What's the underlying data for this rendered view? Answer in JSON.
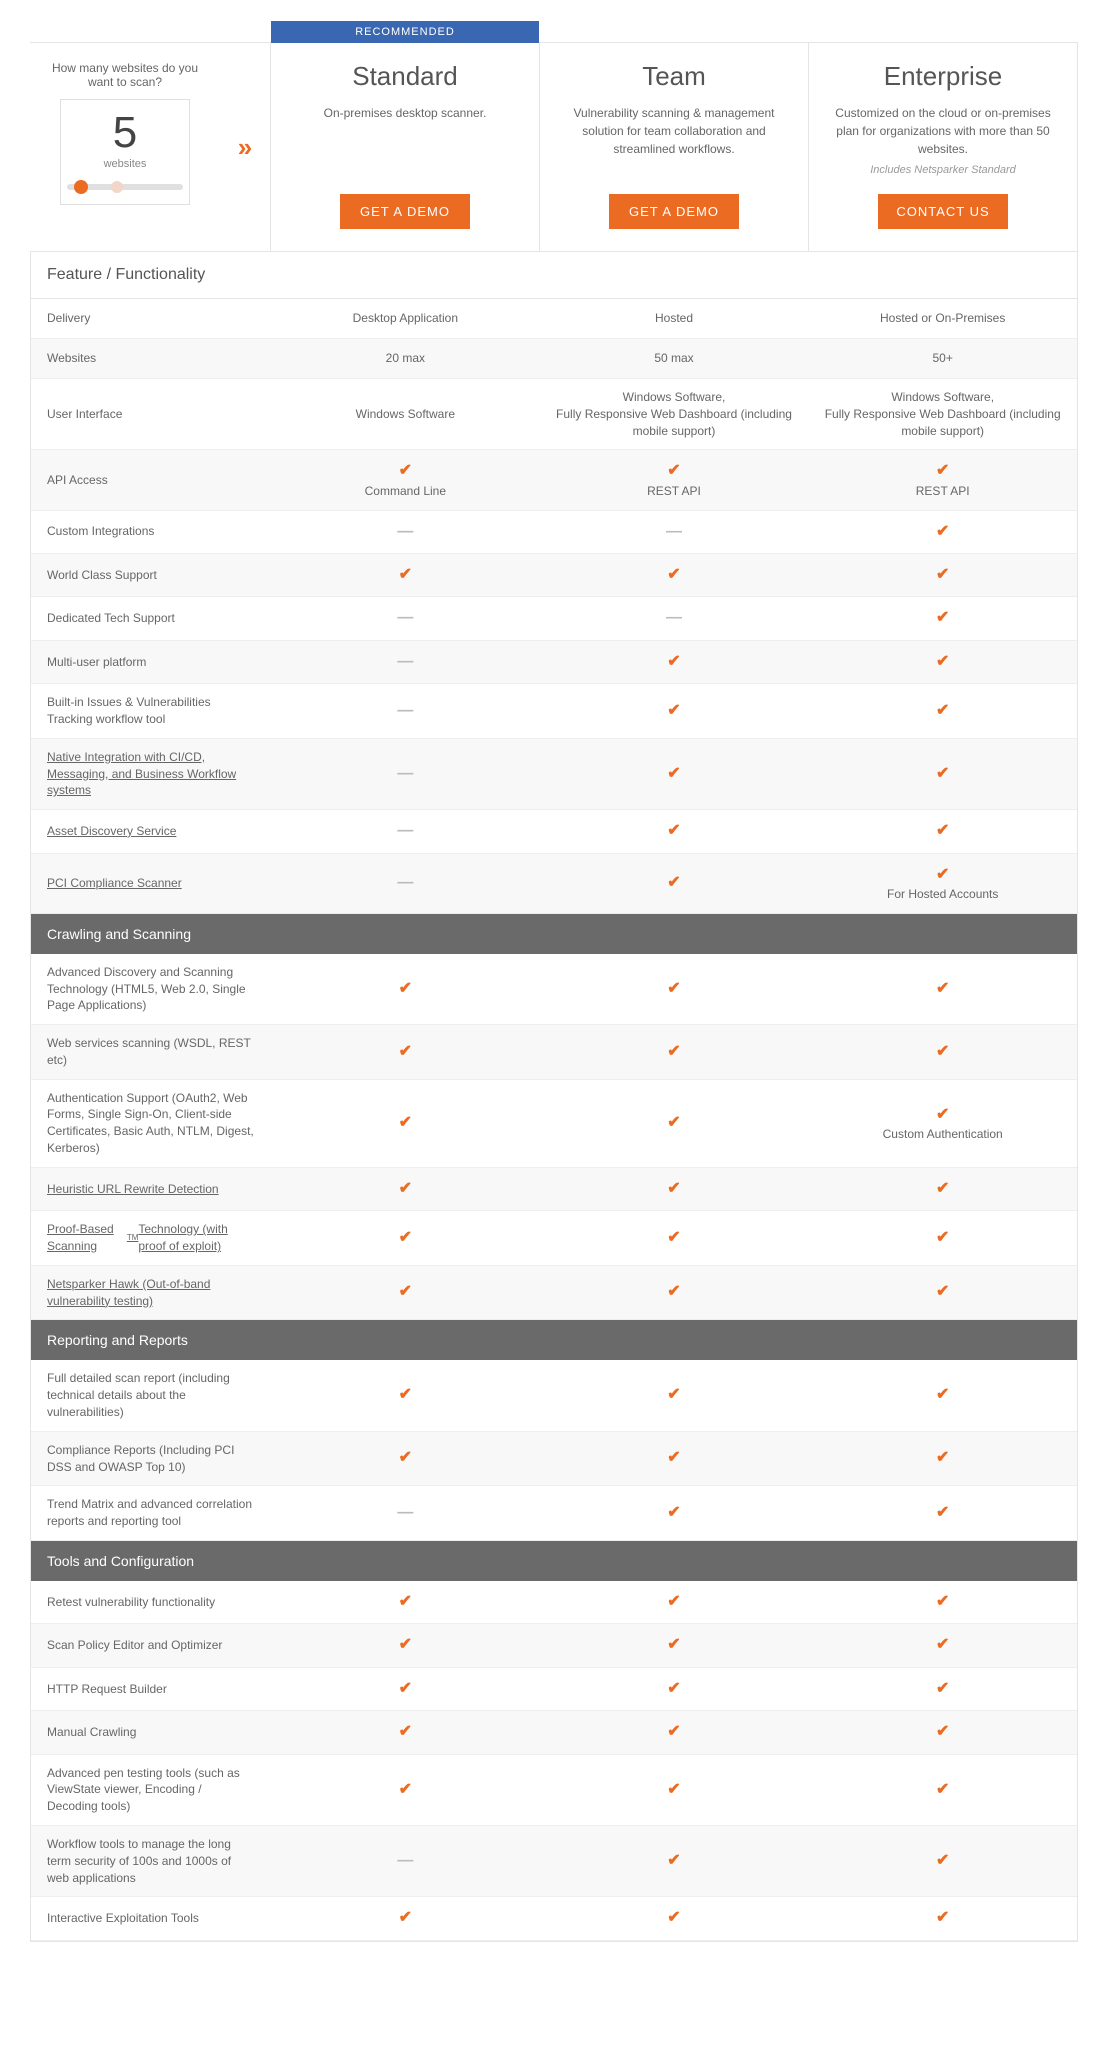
{
  "colors": {
    "accent": "#ec6b22",
    "banner": "#3a67b1",
    "dark_header": "#6a6a6a",
    "border": "#e5e5e5",
    "text": "#555555",
    "muted": "#888888"
  },
  "selector": {
    "question": "How many websites do you want to scan?",
    "count": "5",
    "unit": "websites",
    "knob_pos_pct": 6,
    "knob2_pos_pct": 38
  },
  "plans": [
    {
      "recommended": true,
      "rec_label": "RECOMMENDED",
      "name": "Standard",
      "desc": "On-premises desktop scanner.",
      "sub": "",
      "btn": "GET A DEMO"
    },
    {
      "recommended": false,
      "name": "Team",
      "desc": "Vulnerability scanning & management solution for team collaboration and streamlined workflows.",
      "sub": "",
      "btn": "GET A DEMO"
    },
    {
      "recommended": false,
      "name": "Enterprise",
      "desc": "Customized on the cloud or on-premises plan for organizations with more than 50 websites.",
      "sub": "Includes Netsparker Standard",
      "btn": "CONTACT US"
    }
  ],
  "feature_header": "Feature / Functionality",
  "sections": [
    {
      "title": null,
      "rows": [
        {
          "label": "Delivery",
          "cells": [
            {
              "text": "Desktop Application"
            },
            {
              "text": "Hosted"
            },
            {
              "text": "Hosted or On-Premises"
            }
          ]
        },
        {
          "label": "Websites",
          "cells": [
            {
              "text": "20 max"
            },
            {
              "text": "50 max"
            },
            {
              "text": "50+"
            }
          ]
        },
        {
          "label": "User Interface",
          "cells": [
            {
              "text": "Windows Software"
            },
            {
              "text": "Windows Software,\nFully Responsive Web Dashboard (including mobile support)"
            },
            {
              "text": "Windows Software,\nFully Responsive Web Dashboard (including mobile support)"
            }
          ]
        },
        {
          "label": "API Access",
          "cells": [
            {
              "check": true,
              "text": "Command Line"
            },
            {
              "check": true,
              "text": "REST API"
            },
            {
              "check": true,
              "text": "REST API"
            }
          ]
        },
        {
          "label": "Custom Integrations",
          "cells": [
            {
              "dash": true
            },
            {
              "dash": true
            },
            {
              "check": true
            }
          ]
        },
        {
          "label": "World Class Support",
          "cells": [
            {
              "check": true
            },
            {
              "check": true
            },
            {
              "check": true
            }
          ]
        },
        {
          "label": "Dedicated Tech Support",
          "cells": [
            {
              "dash": true
            },
            {
              "dash": true
            },
            {
              "check": true
            }
          ]
        },
        {
          "label": "Multi-user platform",
          "cells": [
            {
              "dash": true
            },
            {
              "check": true
            },
            {
              "check": true
            }
          ]
        },
        {
          "label": "Built-in Issues & Vulnerabilities Tracking workflow tool",
          "cells": [
            {
              "dash": true
            },
            {
              "check": true
            },
            {
              "check": true
            }
          ]
        },
        {
          "label": "Native Integration with CI/CD, Messaging, and Business Workflow systems",
          "link": true,
          "cells": [
            {
              "dash": true
            },
            {
              "check": true
            },
            {
              "check": true
            }
          ]
        },
        {
          "label": "Asset Discovery Service",
          "link": true,
          "cells": [
            {
              "dash": true
            },
            {
              "check": true
            },
            {
              "check": true
            }
          ]
        },
        {
          "label": "PCI Compliance Scanner",
          "link": true,
          "cells": [
            {
              "dash": true
            },
            {
              "check": true
            },
            {
              "check": true,
              "text": "For Hosted Accounts"
            }
          ]
        }
      ]
    },
    {
      "title": "Crawling and Scanning",
      "rows": [
        {
          "label": "Advanced Discovery and Scanning Technology (HTML5, Web 2.0, Single Page Applications)",
          "cells": [
            {
              "check": true
            },
            {
              "check": true
            },
            {
              "check": true
            }
          ]
        },
        {
          "label": "Web services scanning (WSDL, REST etc)",
          "cells": [
            {
              "check": true
            },
            {
              "check": true
            },
            {
              "check": true
            }
          ]
        },
        {
          "label": "Authentication Support (OAuth2, Web Forms, Single Sign-On, Client-side Certificates, Basic Auth, NTLM, Digest, Kerberos)",
          "cells": [
            {
              "check": true
            },
            {
              "check": true
            },
            {
              "check": true,
              "text": "Custom Authentication"
            }
          ]
        },
        {
          "label": "Heuristic URL Rewrite Detection",
          "link": true,
          "cells": [
            {
              "check": true
            },
            {
              "check": true
            },
            {
              "check": true
            }
          ]
        },
        {
          "label": "Proof-Based Scanning™ Technology (with proof of exploit)",
          "link": true,
          "tm": true,
          "cells": [
            {
              "check": true
            },
            {
              "check": true
            },
            {
              "check": true
            }
          ]
        },
        {
          "label": "Netsparker Hawk (Out-of-band vulnerability testing)",
          "link": true,
          "cells": [
            {
              "check": true
            },
            {
              "check": true
            },
            {
              "check": true
            }
          ]
        }
      ]
    },
    {
      "title": "Reporting and Reports",
      "rows": [
        {
          "label": "Full detailed scan report (including technical details about the vulnerabilities)",
          "cells": [
            {
              "check": true
            },
            {
              "check": true
            },
            {
              "check": true
            }
          ]
        },
        {
          "label": "Compliance Reports (Including PCI DSS and OWASP Top 10)",
          "cells": [
            {
              "check": true
            },
            {
              "check": true
            },
            {
              "check": true
            }
          ]
        },
        {
          "label": "Trend Matrix and advanced correlation reports and reporting tool",
          "cells": [
            {
              "dash": true
            },
            {
              "check": true
            },
            {
              "check": true
            }
          ]
        }
      ]
    },
    {
      "title": "Tools and Configuration",
      "rows": [
        {
          "label": "Retest vulnerability functionality",
          "cells": [
            {
              "check": true
            },
            {
              "check": true
            },
            {
              "check": true
            }
          ]
        },
        {
          "label": "Scan Policy Editor and Optimizer",
          "cells": [
            {
              "check": true
            },
            {
              "check": true
            },
            {
              "check": true
            }
          ]
        },
        {
          "label": "HTTP Request Builder",
          "cells": [
            {
              "check": true
            },
            {
              "check": true
            },
            {
              "check": true
            }
          ]
        },
        {
          "label": "Manual Crawling",
          "cells": [
            {
              "check": true
            },
            {
              "check": true
            },
            {
              "check": true
            }
          ]
        },
        {
          "label": "Advanced pen testing tools (such as ViewState viewer, Encoding / Decoding tools)",
          "cells": [
            {
              "check": true
            },
            {
              "check": true
            },
            {
              "check": true
            }
          ]
        },
        {
          "label": "Workflow tools to manage the long term security of 100s and 1000s of web applications",
          "cells": [
            {
              "dash": true
            },
            {
              "check": true
            },
            {
              "check": true
            }
          ]
        },
        {
          "label": "Interactive Exploitation Tools",
          "cells": [
            {
              "check": true
            },
            {
              "check": true
            },
            {
              "check": true
            }
          ]
        }
      ]
    }
  ]
}
